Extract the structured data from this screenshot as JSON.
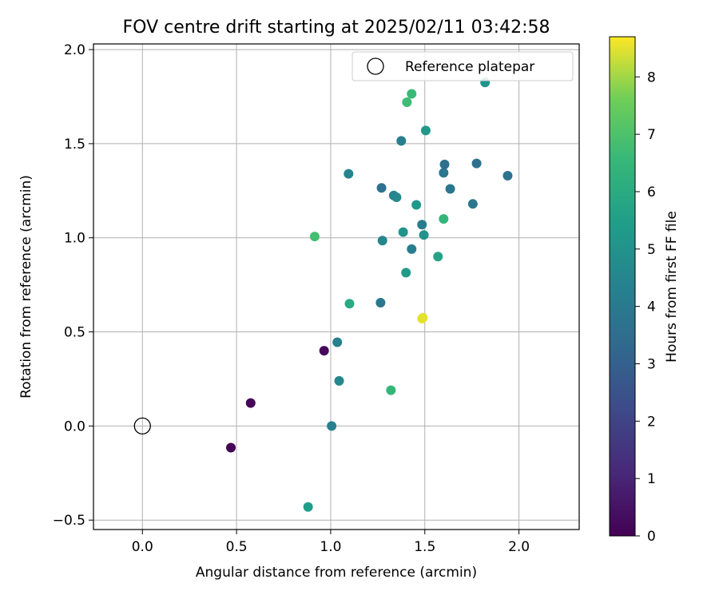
{
  "chart_data": {
    "type": "scatter",
    "title": "FOV centre drift starting at 2025/02/11 03:42:58",
    "xlabel": "Angular distance from reference (arcmin)",
    "ylabel": "Rotation from reference (arcmin)",
    "xlim": [
      -0.26,
      2.32
    ],
    "ylim": [
      -0.55,
      2.03
    ],
    "xticks": [
      "0.0",
      "0.5",
      "1.0",
      "1.5",
      "2.0"
    ],
    "yticks": [
      "−0.5",
      "0.0",
      "0.5",
      "1.0",
      "1.5",
      "2.0"
    ],
    "grid": true,
    "legend": {
      "placement": "top-right",
      "entries": [
        "Reference platepar"
      ]
    },
    "reference": {
      "x": 0.0,
      "y": 0.0
    },
    "colorbar": {
      "label": "Hours from first FF file",
      "range": [
        0,
        8.7
      ],
      "ticks": [
        "0",
        "1",
        "2",
        "3",
        "4",
        "5",
        "6",
        "7",
        "8"
      ],
      "colormap": "viridis"
    },
    "points": [
      {
        "x": 0.47,
        "y": -0.115,
        "h": 0.05
      },
      {
        "x": 0.575,
        "y": 0.122,
        "h": 0.15
      },
      {
        "x": 0.965,
        "y": 0.4,
        "h": 0.2
      },
      {
        "x": 0.88,
        "y": -0.43,
        "h": 5.5
      },
      {
        "x": 1.005,
        "y": 0.0,
        "h": 4.3
      },
      {
        "x": 1.045,
        "y": 0.24,
        "h": 4.6
      },
      {
        "x": 1.035,
        "y": 0.445,
        "h": 4.3
      },
      {
        "x": 1.1,
        "y": 0.65,
        "h": 6.0
      },
      {
        "x": 0.915,
        "y": 1.007,
        "h": 6.8
      },
      {
        "x": 1.32,
        "y": 0.19,
        "h": 6.5
      },
      {
        "x": 1.265,
        "y": 0.655,
        "h": 3.9
      },
      {
        "x": 1.485,
        "y": 0.57,
        "h": 8.6
      },
      {
        "x": 1.49,
        "y": 0.575,
        "h": 8.5
      },
      {
        "x": 1.4,
        "y": 0.815,
        "h": 5.3
      },
      {
        "x": 1.57,
        "y": 0.9,
        "h": 5.7
      },
      {
        "x": 1.43,
        "y": 0.94,
        "h": 4.2
      },
      {
        "x": 1.275,
        "y": 0.985,
        "h": 4.5
      },
      {
        "x": 1.385,
        "y": 1.03,
        "h": 5.0
      },
      {
        "x": 1.495,
        "y": 1.015,
        "h": 5.0
      },
      {
        "x": 1.485,
        "y": 1.07,
        "h": 4.1
      },
      {
        "x": 1.6,
        "y": 1.1,
        "h": 6.5
      },
      {
        "x": 1.455,
        "y": 1.175,
        "h": 5.2
      },
      {
        "x": 1.335,
        "y": 1.225,
        "h": 4.3
      },
      {
        "x": 1.35,
        "y": 1.215,
        "h": 4.6
      },
      {
        "x": 1.27,
        "y": 1.265,
        "h": 3.7
      },
      {
        "x": 1.095,
        "y": 1.34,
        "h": 4.4
      },
      {
        "x": 1.635,
        "y": 1.26,
        "h": 3.8
      },
      {
        "x": 1.755,
        "y": 1.18,
        "h": 3.9
      },
      {
        "x": 1.6,
        "y": 1.345,
        "h": 3.9
      },
      {
        "x": 1.605,
        "y": 1.39,
        "h": 3.6
      },
      {
        "x": 1.775,
        "y": 1.395,
        "h": 3.6
      },
      {
        "x": 1.94,
        "y": 1.33,
        "h": 3.7
      },
      {
        "x": 1.375,
        "y": 1.515,
        "h": 4.2
      },
      {
        "x": 1.505,
        "y": 1.57,
        "h": 5.2
      },
      {
        "x": 1.405,
        "y": 1.72,
        "h": 6.7
      },
      {
        "x": 1.43,
        "y": 1.765,
        "h": 6.6
      },
      {
        "x": 1.82,
        "y": 1.825,
        "h": 5.1
      }
    ]
  }
}
